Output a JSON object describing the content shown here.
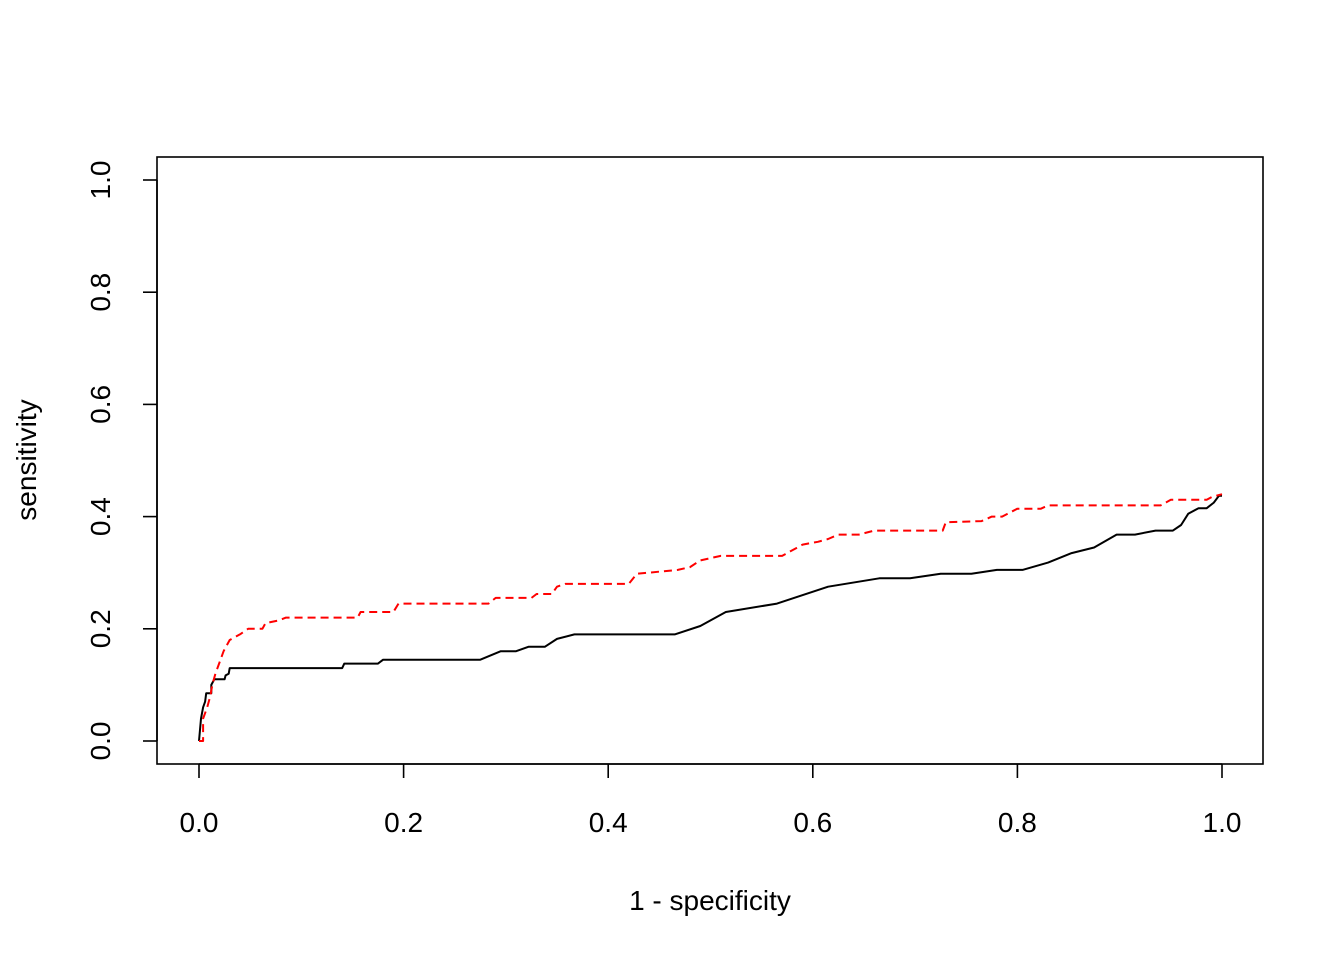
{
  "chart_data": {
    "type": "line",
    "title": "",
    "xlabel": "1 - specificity",
    "ylabel": "sensitivity",
    "xlim": [
      0,
      1
    ],
    "ylim": [
      0,
      1
    ],
    "grid": false,
    "legend": "none",
    "x_ticks": [
      "0.0",
      "0.2",
      "0.4",
      "0.6",
      "0.8",
      "1.0"
    ],
    "y_ticks": [
      "0.0",
      "0.2",
      "0.4",
      "0.6",
      "0.8",
      "1.0"
    ],
    "series": [
      {
        "color": "#000000",
        "style": "solid",
        "points": [
          [
            0.0,
            0.0
          ],
          [
            0.002,
            0.04
          ],
          [
            0.004,
            0.06
          ],
          [
            0.006,
            0.07
          ],
          [
            0.007,
            0.085
          ],
          [
            0.012,
            0.085
          ],
          [
            0.012,
            0.1
          ],
          [
            0.015,
            0.11
          ],
          [
            0.025,
            0.11
          ],
          [
            0.026,
            0.117
          ],
          [
            0.029,
            0.12
          ],
          [
            0.03,
            0.13
          ],
          [
            0.14,
            0.13
          ],
          [
            0.142,
            0.138
          ],
          [
            0.175,
            0.138
          ],
          [
            0.18,
            0.145
          ],
          [
            0.275,
            0.145
          ],
          [
            0.295,
            0.16
          ],
          [
            0.31,
            0.16
          ],
          [
            0.322,
            0.168
          ],
          [
            0.338,
            0.168
          ],
          [
            0.35,
            0.182
          ],
          [
            0.367,
            0.19
          ],
          [
            0.465,
            0.19
          ],
          [
            0.49,
            0.205
          ],
          [
            0.515,
            0.23
          ],
          [
            0.565,
            0.245
          ],
          [
            0.615,
            0.275
          ],
          [
            0.665,
            0.29
          ],
          [
            0.695,
            0.29
          ],
          [
            0.725,
            0.298
          ],
          [
            0.755,
            0.298
          ],
          [
            0.78,
            0.305
          ],
          [
            0.805,
            0.305
          ],
          [
            0.83,
            0.318
          ],
          [
            0.853,
            0.335
          ],
          [
            0.875,
            0.345
          ],
          [
            0.897,
            0.368
          ],
          [
            0.915,
            0.368
          ],
          [
            0.935,
            0.375
          ],
          [
            0.952,
            0.375
          ],
          [
            0.96,
            0.385
          ],
          [
            0.967,
            0.405
          ],
          [
            0.977,
            0.415
          ],
          [
            0.985,
            0.415
          ],
          [
            0.992,
            0.425
          ],
          [
            0.997,
            0.437
          ],
          [
            1.0,
            0.437
          ]
        ]
      },
      {
        "color": "#ff0000",
        "style": "dashed",
        "points": [
          [
            0.0,
            0.0
          ],
          [
            0.004,
            0.0
          ],
          [
            0.004,
            0.04
          ],
          [
            0.008,
            0.06
          ],
          [
            0.011,
            0.08
          ],
          [
            0.013,
            0.1
          ],
          [
            0.016,
            0.12
          ],
          [
            0.02,
            0.14
          ],
          [
            0.024,
            0.16
          ],
          [
            0.03,
            0.18
          ],
          [
            0.04,
            0.19
          ],
          [
            0.048,
            0.2
          ],
          [
            0.062,
            0.2
          ],
          [
            0.065,
            0.21
          ],
          [
            0.078,
            0.215
          ],
          [
            0.085,
            0.22
          ],
          [
            0.155,
            0.22
          ],
          [
            0.158,
            0.23
          ],
          [
            0.19,
            0.23
          ],
          [
            0.195,
            0.245
          ],
          [
            0.283,
            0.245
          ],
          [
            0.29,
            0.255
          ],
          [
            0.325,
            0.255
          ],
          [
            0.33,
            0.262
          ],
          [
            0.345,
            0.262
          ],
          [
            0.35,
            0.275
          ],
          [
            0.358,
            0.28
          ],
          [
            0.42,
            0.28
          ],
          [
            0.428,
            0.298
          ],
          [
            0.468,
            0.305
          ],
          [
            0.48,
            0.31
          ],
          [
            0.49,
            0.322
          ],
          [
            0.51,
            0.33
          ],
          [
            0.57,
            0.33
          ],
          [
            0.59,
            0.35
          ],
          [
            0.605,
            0.355
          ],
          [
            0.615,
            0.36
          ],
          [
            0.625,
            0.368
          ],
          [
            0.645,
            0.368
          ],
          [
            0.66,
            0.375
          ],
          [
            0.727,
            0.375
          ],
          [
            0.73,
            0.39
          ],
          [
            0.765,
            0.392
          ],
          [
            0.775,
            0.4
          ],
          [
            0.785,
            0.4
          ],
          [
            0.8,
            0.414
          ],
          [
            0.823,
            0.414
          ],
          [
            0.83,
            0.42
          ],
          [
            0.94,
            0.42
          ],
          [
            0.95,
            0.43
          ],
          [
            0.985,
            0.43
          ],
          [
            0.99,
            0.435
          ],
          [
            1.0,
            0.44
          ]
        ]
      }
    ]
  }
}
